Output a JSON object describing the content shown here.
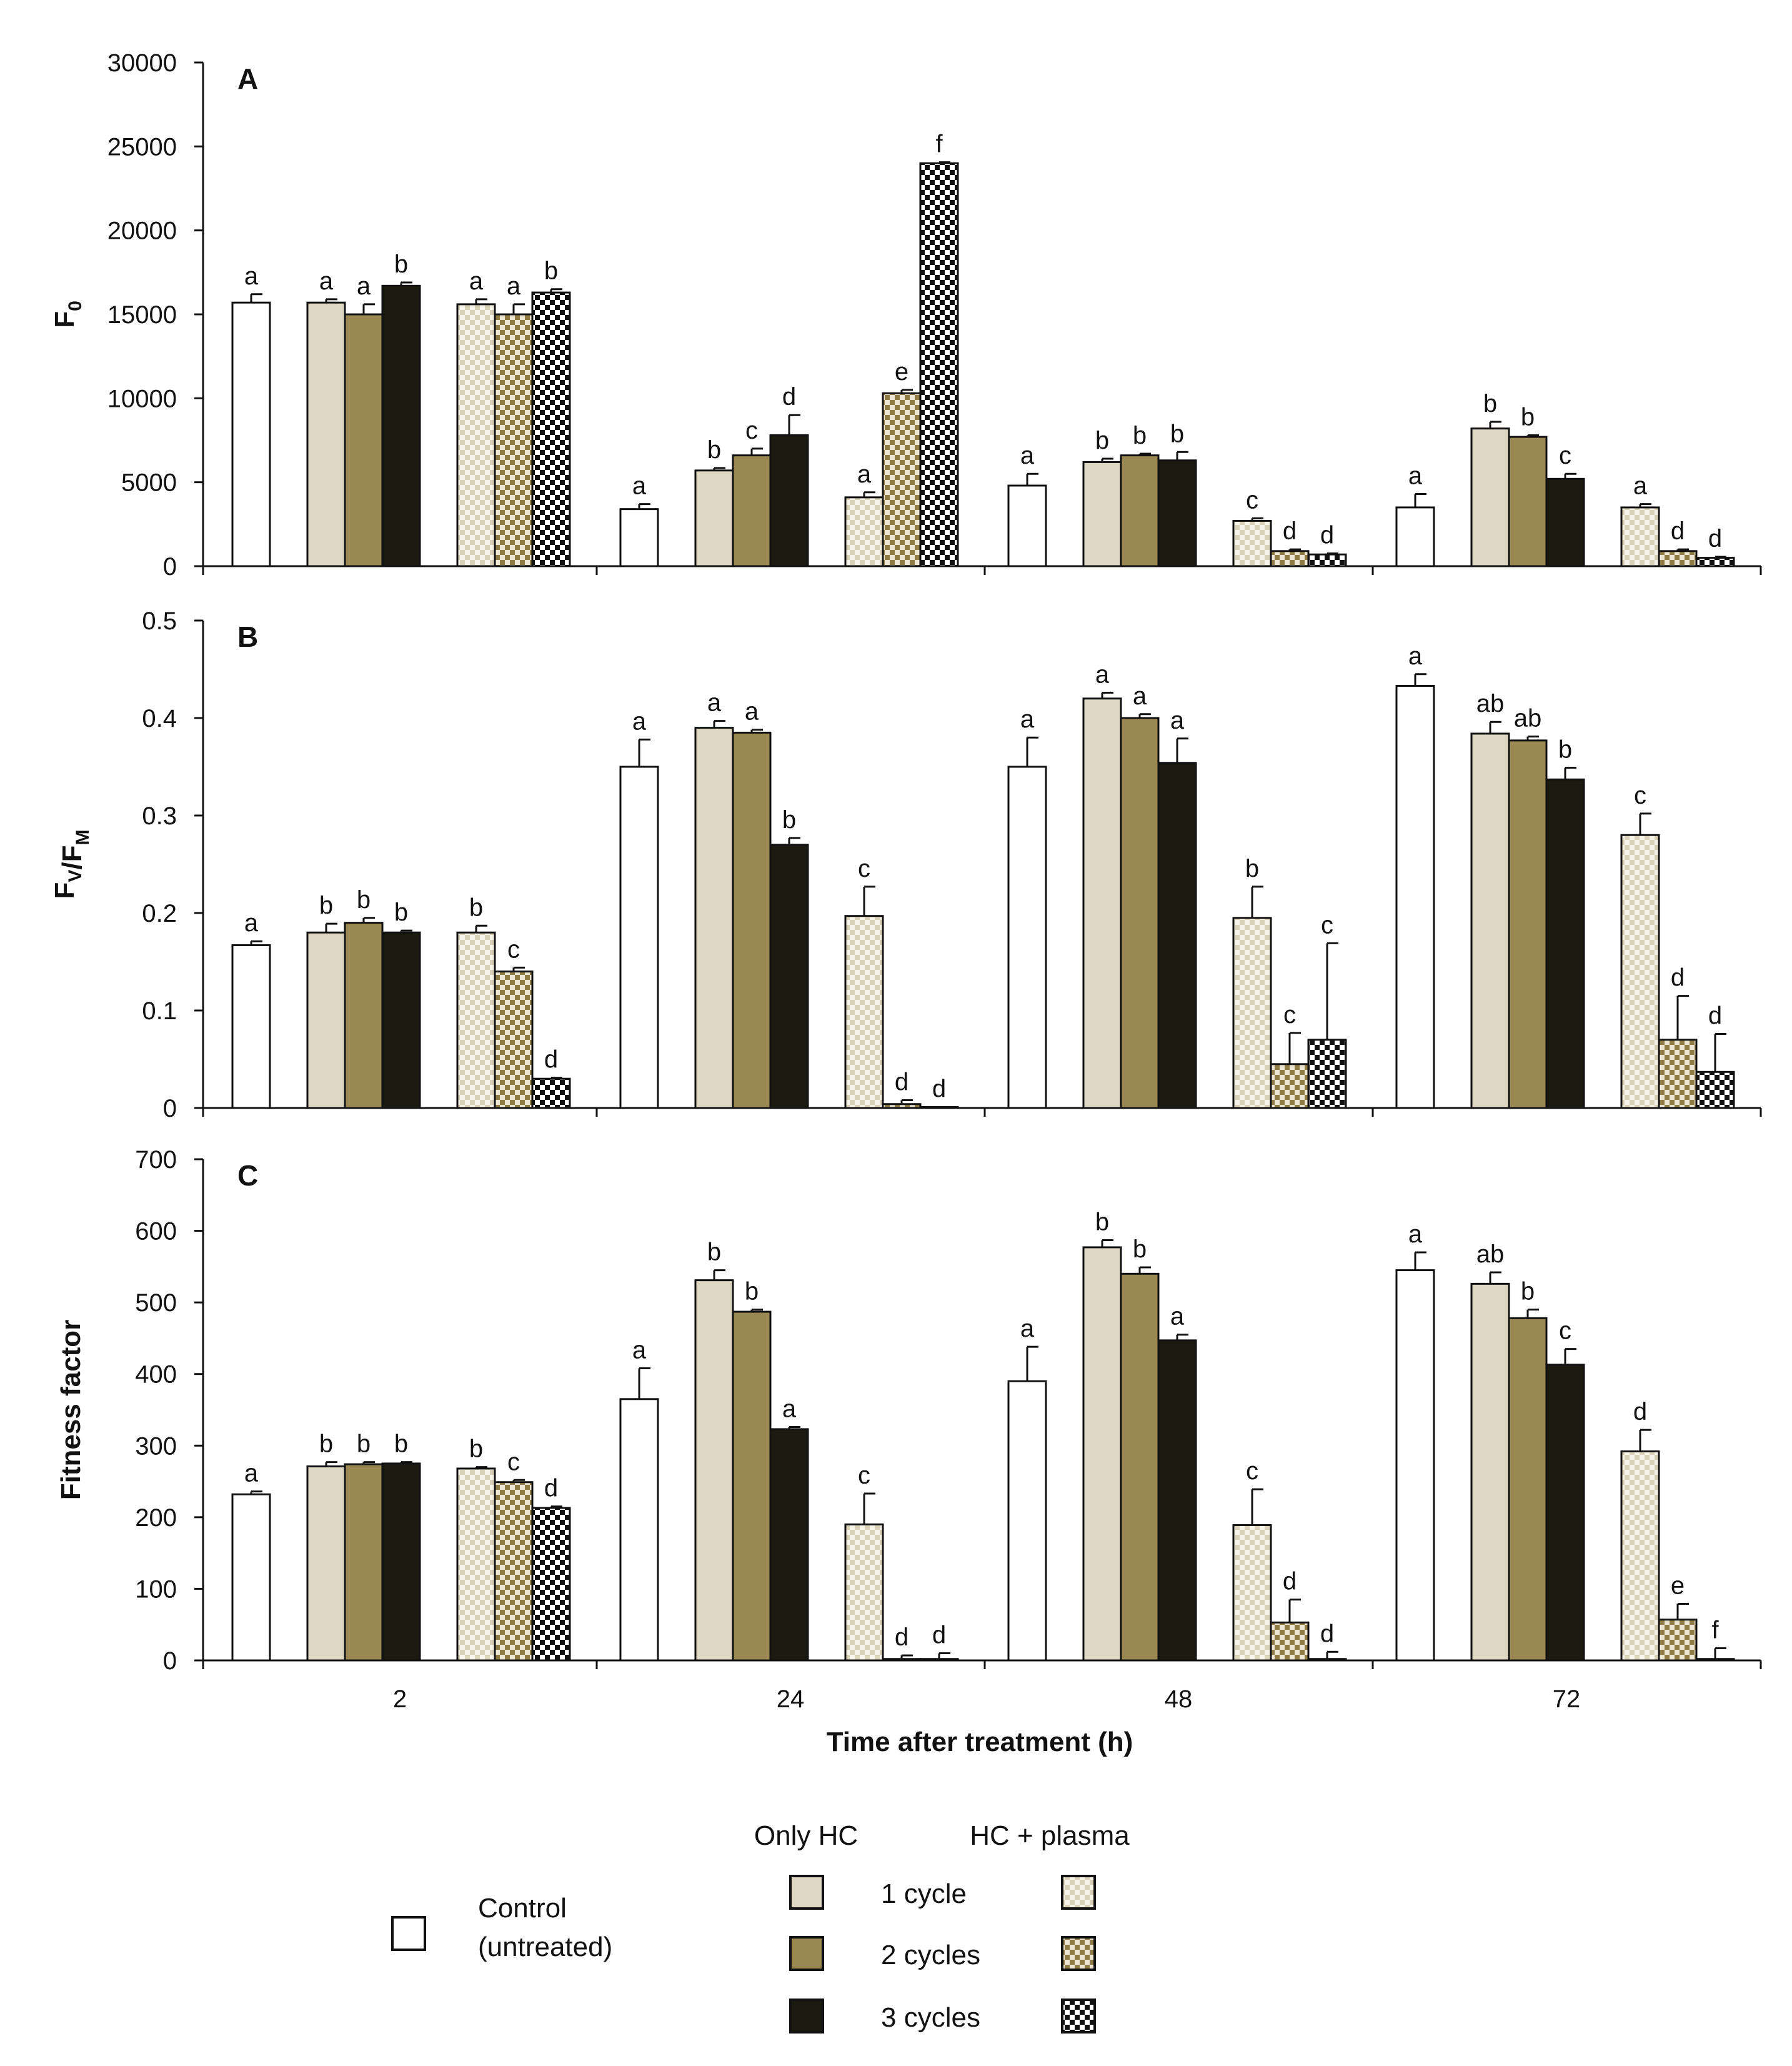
{
  "chart_data": {
    "type": "bar",
    "categories": [
      "2",
      "24",
      "48",
      "72"
    ],
    "xlabel": "Time after treatment (h)",
    "legend": {
      "placement": "bottom",
      "group_headers": [
        "Only HC",
        "HC + plasma"
      ],
      "control_label_line1": "Control",
      "control_label_line2": "(untreated)",
      "row_labels": [
        "1 cycle",
        "2 cycles",
        "3 cycles"
      ]
    },
    "series_styles": [
      {
        "key": "control",
        "fill": "#ffffff",
        "pattern": "none"
      },
      {
        "key": "hc1",
        "fill": "#ddd7c4",
        "pattern": "none"
      },
      {
        "key": "hc2",
        "fill": "#9a8852",
        "pattern": "none"
      },
      {
        "key": "hc3",
        "fill": "#1b1a10",
        "pattern": "none"
      },
      {
        "key": "hcp1",
        "fill": "#ddd7c4",
        "pattern": "checker-light"
      },
      {
        "key": "hcp2",
        "fill": "#9a8852",
        "pattern": "checker-medium"
      },
      {
        "key": "hcp3",
        "fill": "#1b1a10",
        "pattern": "checker-dark"
      }
    ],
    "panels": [
      {
        "panel": "A",
        "ylabel_main": "F",
        "ylabel_sub": "0",
        "ylim": [
          0,
          30000
        ],
        "yticks": [
          "0",
          "5000",
          "10000",
          "15000",
          "20000",
          "25000",
          "30000"
        ],
        "values": [
          [
            15700,
            15700,
            15000,
            16700,
            15600,
            15000,
            16300
          ],
          [
            3400,
            5700,
            6600,
            7800,
            4100,
            10300,
            24000
          ],
          [
            4800,
            6200,
            6600,
            6300,
            2700,
            900,
            700
          ],
          [
            3500,
            8200,
            7700,
            5200,
            3500,
            900,
            500
          ]
        ],
        "errors": [
          [
            500,
            200,
            600,
            200,
            300,
            600,
            200
          ],
          [
            300,
            150,
            400,
            1200,
            300,
            200,
            60
          ],
          [
            700,
            200,
            100,
            500,
            150,
            100,
            60
          ],
          [
            800,
            400,
            100,
            300,
            200,
            100,
            60
          ]
        ],
        "letters": [
          [
            "a",
            "a",
            "a",
            "b",
            "a",
            "a",
            "b"
          ],
          [
            "a",
            "b",
            "c",
            "d",
            "a",
            "e",
            "f"
          ],
          [
            "a",
            "b",
            "b",
            "b",
            "c",
            "d",
            "d"
          ],
          [
            "a",
            "b",
            "b",
            "c",
            "a",
            "d",
            "d"
          ]
        ]
      },
      {
        "panel": "B",
        "ylabel_main": "F",
        "ylabel_sub1": "V",
        "ylabel_mid": "/F",
        "ylabel_sub2": "M",
        "ylim": [
          0,
          0.5
        ],
        "yticks": [
          "0",
          "0.1",
          "0.2",
          "0.3",
          "0.4",
          "0.5"
        ],
        "values": [
          [
            0.167,
            0.18,
            0.19,
            0.18,
            0.18,
            0.14,
            0.03
          ],
          [
            0.35,
            0.39,
            0.385,
            0.27,
            0.197,
            0.004,
            0.001
          ],
          [
            0.35,
            0.42,
            0.4,
            0.354,
            0.195,
            0.045,
            0.07
          ],
          [
            0.433,
            0.384,
            0.377,
            0.337,
            0.28,
            0.07,
            0.037
          ]
        ],
        "errors": [
          [
            0.004,
            0.009,
            0.005,
            0.002,
            0.007,
            0.004,
            0.001
          ],
          [
            0.028,
            0.007,
            0.003,
            0.007,
            0.03,
            0.004,
            0.0
          ],
          [
            0.03,
            0.006,
            0.004,
            0.025,
            0.032,
            0.032,
            0.099
          ],
          [
            0.012,
            0.012,
            0.004,
            0.012,
            0.022,
            0.045,
            0.039
          ]
        ],
        "letters": [
          [
            "a",
            "b",
            "b",
            "b",
            "b",
            "c",
            "d"
          ],
          [
            "a",
            "a",
            "a",
            "b",
            "c",
            "d",
            "d"
          ],
          [
            "a",
            "a",
            "a",
            "a",
            "b",
            "c",
            "c"
          ],
          [
            "a",
            "ab",
            "ab",
            "b",
            "c",
            "d",
            "d"
          ]
        ]
      },
      {
        "panel": "C",
        "ylabel": "Fitness factor",
        "ylim": [
          0,
          700
        ],
        "yticks": [
          "0",
          "100",
          "200",
          "300",
          "400",
          "500",
          "600",
          "700"
        ],
        "values": [
          [
            232,
            271,
            274,
            275,
            268,
            249,
            213
          ],
          [
            365,
            531,
            487,
            323,
            190,
            2,
            2
          ],
          [
            390,
            577,
            540,
            447,
            189,
            53,
            2
          ],
          [
            545,
            526,
            478,
            413,
            292,
            57,
            2
          ]
        ],
        "errors": [
          [
            4,
            6,
            3,
            2,
            2,
            3,
            2
          ],
          [
            43,
            14,
            3,
            3,
            43,
            5,
            8
          ],
          [
            48,
            10,
            9,
            8,
            50,
            32,
            10
          ],
          [
            25,
            16,
            12,
            22,
            30,
            22,
            15
          ]
        ],
        "letters": [
          [
            "a",
            "b",
            "b",
            "b",
            "b",
            "c",
            "d"
          ],
          [
            "a",
            "b",
            "b",
            "a",
            "c",
            "d",
            "d"
          ],
          [
            "a",
            "b",
            "b",
            "a",
            "c",
            "d",
            "d"
          ],
          [
            "a",
            "ab",
            "b",
            "c",
            "d",
            "e",
            "f"
          ]
        ]
      }
    ]
  }
}
